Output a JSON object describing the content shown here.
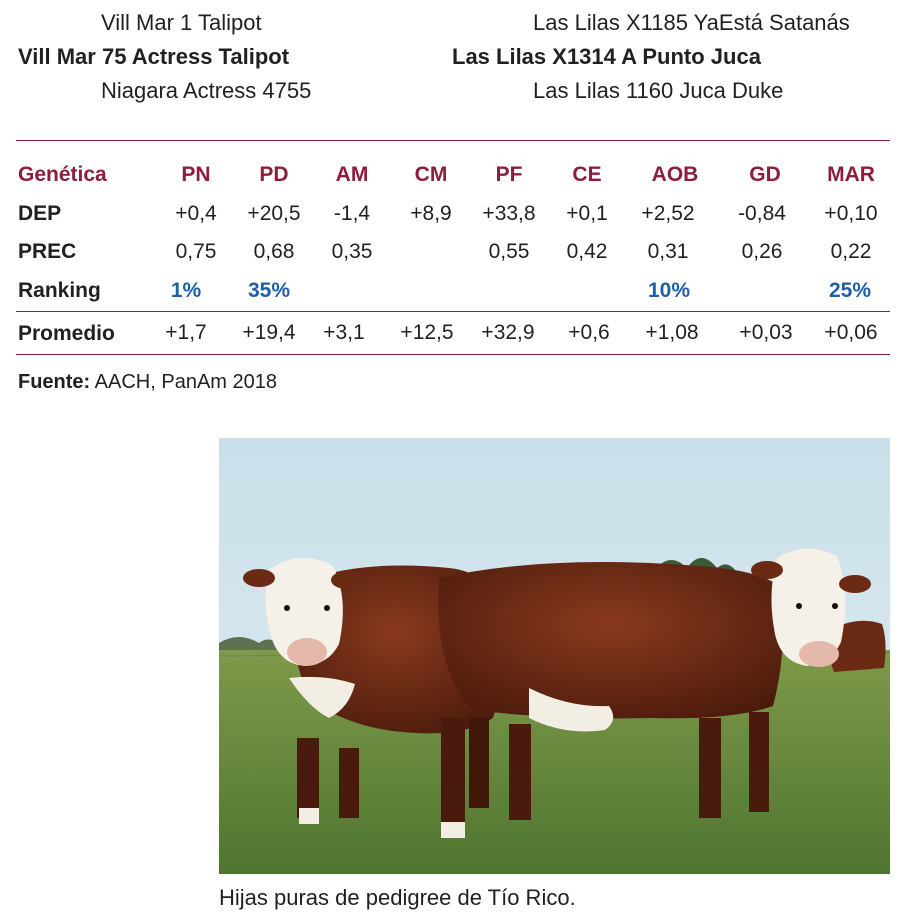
{
  "pedigree": {
    "sire_sire": "Vill Mar 1 Talipot",
    "sire": "Vill Mar 75 Actress Talipot",
    "sire_dam": "Niagara Actress 4755",
    "dam_sire": "Las Lilas X1185 YaEstá Satanás",
    "dam": "Las Lilas X1314 A Punto Juca",
    "dam_dam": "Las Lilas 1160 Juca Duke"
  },
  "table": {
    "header_label": "Genética",
    "columns": [
      "PN",
      "PD",
      "AM",
      "CM",
      "PF",
      "CE",
      "AOB",
      "GD",
      "MAR"
    ],
    "rows": [
      {
        "label": "DEP",
        "values": [
          "+0,4",
          "+20,5",
          "-1,4",
          "+8,9",
          "+33,8",
          "+0,1",
          "+2,52",
          "-0,84",
          "+0,10"
        ]
      },
      {
        "label": "PREC",
        "values": [
          "0,75",
          "0,68",
          "0,35",
          "",
          "0,55",
          "0,42",
          "0,31",
          "0,26",
          "0,22"
        ]
      },
      {
        "label": "Ranking",
        "values": [
          "1%",
          "35%",
          "",
          "",
          "",
          "",
          "10%",
          "",
          "25%"
        ]
      },
      {
        "label": "Promedio",
        "values": [
          "+1,7",
          "+19,4",
          "+3,1",
          "+12,5",
          "+32,9",
          "+0,6",
          "+1,08",
          "+0,03",
          "+0,06"
        ]
      }
    ]
  },
  "source": {
    "label": "Fuente:",
    "text": " AACH, PanAm 2018"
  },
  "photo": {
    "description_icon": "hereford-heifers-photo"
  },
  "caption": "Hijas puras de pedigree de Tío Rico.",
  "colors": {
    "header": "#8c1e3c",
    "ranking": "#1e5fa8",
    "text": "#231f20"
  }
}
